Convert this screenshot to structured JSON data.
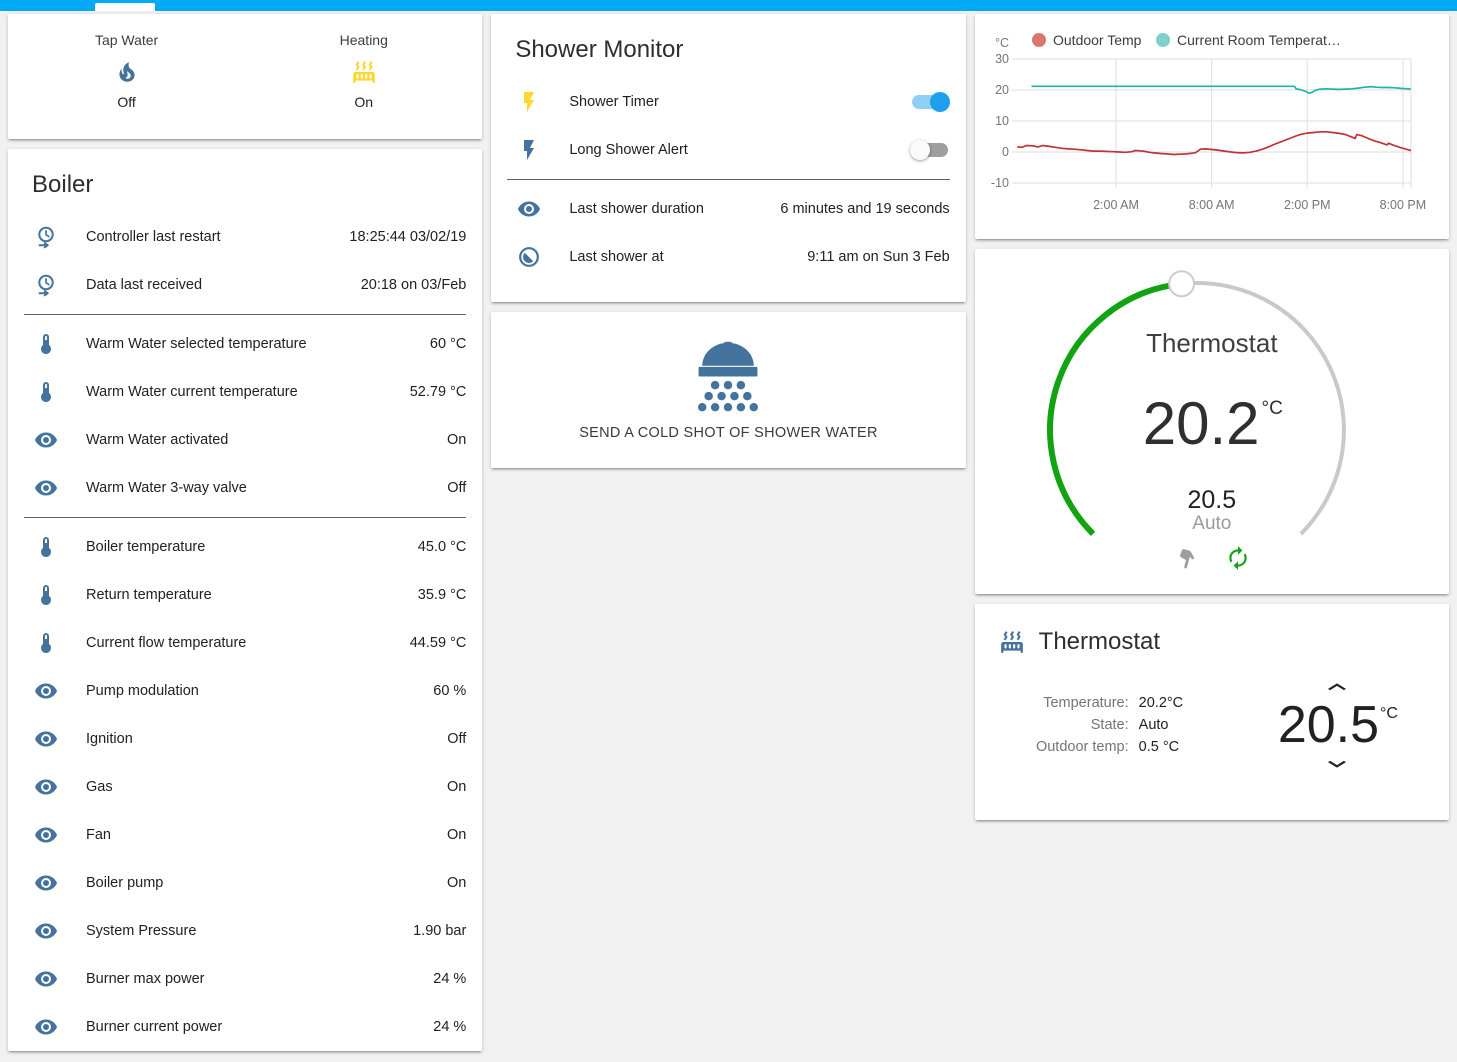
{
  "header": {
    "color": "#03a9f4"
  },
  "glance": {
    "items": [
      {
        "name": "Tap Water",
        "state": "Off",
        "icon": "fire",
        "icon_color": "#44739e"
      },
      {
        "name": "Heating",
        "state": "On",
        "icon": "radiator",
        "icon_color": "#fdd835"
      }
    ]
  },
  "boiler": {
    "title": "Boiler",
    "rows": [
      {
        "icon": "clock-start",
        "label": "Controller last restart",
        "value": "18:25:44 03/02/19"
      },
      {
        "icon": "clock-start",
        "label": "Data last received",
        "value": "20:18 on 03/Feb",
        "divider_after": true
      },
      {
        "icon": "thermometer",
        "label": "Warm Water selected temperature",
        "value": "60 °C"
      },
      {
        "icon": "thermometer",
        "label": "Warm Water current temperature",
        "value": "52.79 °C"
      },
      {
        "icon": "eye",
        "label": "Warm Water activated",
        "value": "On"
      },
      {
        "icon": "eye",
        "label": "Warm Water 3-way valve",
        "value": "Off",
        "divider_after": true
      },
      {
        "icon": "thermometer",
        "label": "Boiler temperature",
        "value": "45.0 °C"
      },
      {
        "icon": "thermometer",
        "label": "Return temperature",
        "value": "35.9 °C"
      },
      {
        "icon": "thermometer",
        "label": "Current flow temperature",
        "value": "44.59 °C"
      },
      {
        "icon": "eye",
        "label": "Pump modulation",
        "value": "60 %"
      },
      {
        "icon": "eye",
        "label": "Ignition",
        "value": "Off"
      },
      {
        "icon": "eye",
        "label": "Gas",
        "value": "On"
      },
      {
        "icon": "eye",
        "label": "Fan",
        "value": "On"
      },
      {
        "icon": "eye",
        "label": "Boiler pump",
        "value": "On"
      },
      {
        "icon": "eye",
        "label": "System Pressure",
        "value": "1.90 bar"
      },
      {
        "icon": "eye",
        "label": "Burner max power",
        "value": "24 %"
      },
      {
        "icon": "eye",
        "label": "Burner current power",
        "value": "24 %"
      }
    ]
  },
  "shower_monitor": {
    "title": "Shower Monitor",
    "rows": [
      {
        "icon": "flash",
        "icon_color": "#fdd835",
        "label": "Shower Timer",
        "toggle": "on"
      },
      {
        "icon": "flash",
        "icon_color": "#44739e",
        "label": "Long Shower Alert",
        "toggle": "off",
        "divider_after": true
      },
      {
        "icon": "eye",
        "icon_color": "#44739e",
        "label": "Last shower duration",
        "value": "6 minutes and 19 seconds"
      },
      {
        "icon": "clock-progress",
        "icon_color": "#44739e",
        "label": "Last shower at",
        "value": "9:11 am on Sun 3 Feb"
      }
    ]
  },
  "shower_button": {
    "label": "SEND A COLD SHOT OF SHOWER WATER"
  },
  "chart_data": {
    "type": "line",
    "unit": "°C",
    "y_ticks": [
      30,
      20,
      10,
      0,
      -10
    ],
    "y_range": [
      -14,
      34
    ],
    "x_ticks": [
      "2:00 AM",
      "8:00 AM",
      "2:00 PM",
      "8:00 PM"
    ],
    "x_tick_hours": [
      2,
      8,
      14,
      20
    ],
    "x_range_hours": [
      -4.3,
      20.6
    ],
    "grid": true,
    "legend_position": "top",
    "series": [
      {
        "name": "Outdoor Temp",
        "color": "#c03234",
        "dot_color": "#d9776f",
        "points": [
          [
            -4.2,
            1.6
          ],
          [
            -3.9,
            1.5
          ],
          [
            -3.6,
            2.1
          ],
          [
            -3.2,
            2.0
          ],
          [
            -2.9,
            1.6
          ],
          [
            -2.6,
            2.1
          ],
          [
            -2.2,
            1.8
          ],
          [
            -1.8,
            1.5
          ],
          [
            -1.4,
            1.2
          ],
          [
            -1.0,
            1.0
          ],
          [
            -0.6,
            0.9
          ],
          [
            -0.2,
            0.7
          ],
          [
            0.2,
            0.5
          ],
          [
            0.6,
            0.3
          ],
          [
            1.0,
            0.3
          ],
          [
            1.4,
            0.2
          ],
          [
            1.8,
            0.1
          ],
          [
            2.2,
            0.0
          ],
          [
            2.6,
            -0.1
          ],
          [
            3.0,
            0.1
          ],
          [
            3.2,
            0.5
          ],
          [
            3.5,
            0.4
          ],
          [
            3.8,
            0.2
          ],
          [
            4.1,
            -0.1
          ],
          [
            4.4,
            -0.3
          ],
          [
            4.8,
            -0.5
          ],
          [
            5.2,
            -0.6
          ],
          [
            5.6,
            -0.8
          ],
          [
            6.0,
            -0.7
          ],
          [
            6.4,
            -0.6
          ],
          [
            6.8,
            -0.4
          ],
          [
            7.0,
            -0.2
          ],
          [
            7.3,
            0.9
          ],
          [
            7.6,
            1.0
          ],
          [
            8.0,
            0.8
          ],
          [
            8.4,
            0.6
          ],
          [
            8.8,
            0.3
          ],
          [
            9.2,
            0.0
          ],
          [
            9.6,
            -0.2
          ],
          [
            10.0,
            -0.3
          ],
          [
            10.4,
            -0.1
          ],
          [
            10.8,
            0.3
          ],
          [
            11.2,
            0.9
          ],
          [
            11.6,
            1.7
          ],
          [
            12.0,
            2.6
          ],
          [
            12.4,
            3.4
          ],
          [
            12.8,
            4.2
          ],
          [
            13.2,
            5.0
          ],
          [
            13.6,
            5.7
          ],
          [
            14.0,
            6.1
          ],
          [
            14.4,
            6.3
          ],
          [
            14.8,
            6.5
          ],
          [
            15.2,
            6.5
          ],
          [
            15.6,
            6.3
          ],
          [
            16.0,
            6.0
          ],
          [
            16.4,
            5.6
          ],
          [
            16.8,
            4.8
          ],
          [
            17.0,
            4.4
          ],
          [
            17.1,
            5.6
          ],
          [
            17.4,
            5.3
          ],
          [
            17.8,
            4.4
          ],
          [
            18.2,
            3.6
          ],
          [
            18.6,
            3.0
          ],
          [
            19.0,
            2.3
          ],
          [
            19.1,
            2.8
          ],
          [
            19.4,
            2.2
          ],
          [
            19.8,
            1.5
          ],
          [
            20.2,
            0.9
          ],
          [
            20.5,
            0.5
          ]
        ]
      },
      {
        "name": "Current Room Temperat…",
        "color": "#1cb5ad",
        "dot_color": "#7fcfca",
        "points": [
          [
            -3.3,
            21.2
          ],
          [
            13.2,
            21.2
          ],
          [
            13.3,
            20.4
          ],
          [
            13.6,
            20.1
          ],
          [
            13.9,
            19.5
          ],
          [
            14.1,
            19.0
          ],
          [
            14.3,
            19.2
          ],
          [
            14.5,
            19.9
          ],
          [
            14.8,
            20.3
          ],
          [
            15.2,
            20.4
          ],
          [
            15.6,
            20.3
          ],
          [
            16.0,
            20.2
          ],
          [
            16.4,
            20.3
          ],
          [
            16.8,
            20.4
          ],
          [
            17.2,
            20.6
          ],
          [
            17.6,
            20.9
          ],
          [
            18.0,
            21.1
          ],
          [
            18.3,
            20.9
          ],
          [
            18.7,
            20.8
          ],
          [
            19.1,
            20.8
          ],
          [
            19.5,
            20.7
          ],
          [
            19.9,
            20.5
          ],
          [
            20.3,
            20.4
          ],
          [
            20.5,
            20.3
          ]
        ]
      }
    ]
  },
  "dial": {
    "title": "Thermostat",
    "current": "20.2",
    "unit": "°C",
    "target": "20.5",
    "mode": "Auto",
    "arc_color": "#12a312",
    "track_color": "#c9c9c9"
  },
  "thermostat_card": {
    "title": "Thermostat",
    "info": [
      {
        "label": "Temperature:",
        "value": "20.2°C"
      },
      {
        "label": "State:",
        "value": "Auto"
      },
      {
        "label": "Outdoor temp:",
        "value": "0.5 °C"
      }
    ],
    "target": "20.5",
    "unit": "°C"
  },
  "colors": {
    "header": "#03a9f4",
    "icon_blue": "#44739e",
    "icon_yellow": "#fdd835",
    "toggle_on_knob": "#1e9fee",
    "toggle_on_track": "#8ed0f5",
    "toggle_off_knob": "#fafafa",
    "toggle_off_track": "#9e9e9e"
  }
}
